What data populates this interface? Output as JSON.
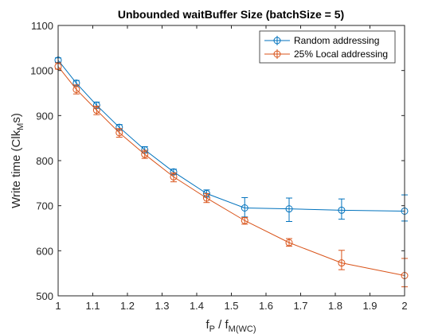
{
  "chart_data": {
    "type": "line",
    "title": "Unbounded waitBuffer Size (batchSize = 5)",
    "xlabel": {
      "base": "f",
      "sub1": "P",
      "mid": " / f",
      "sub2": "M(WC)"
    },
    "ylabel": {
      "pre": "Write time (Clk",
      "sub": "M",
      "post": "s)"
    },
    "xlim": [
      1,
      2
    ],
    "ylim": [
      500,
      1100
    ],
    "xticks": [
      "1",
      "1.1",
      "1.2",
      "1.3",
      "1.4",
      "1.5",
      "1.6",
      "1.7",
      "1.8",
      "1.9",
      "2"
    ],
    "yticks": [
      "500",
      "600",
      "700",
      "800",
      "900",
      "1000",
      "1100"
    ],
    "legend_position": "top-right",
    "grid": false,
    "x": [
      1.0,
      1.0526,
      1.1111,
      1.1765,
      1.25,
      1.3333,
      1.4286,
      1.5385,
      1.6667,
      1.8182,
      2.0
    ],
    "series": [
      {
        "name": "Random addressing",
        "color": "#0072BD",
        "marker": "circle",
        "values": [
          1023,
          972,
          923,
          874,
          824,
          775,
          727,
          695,
          693,
          690,
          688
        ],
        "err_low": [
          5,
          6,
          7,
          6,
          7,
          6,
          8,
          20,
          28,
          20,
          22
        ],
        "err_high": [
          5,
          6,
          7,
          6,
          7,
          6,
          8,
          23,
          24,
          25,
          36
        ]
      },
      {
        "name": "25% Local addressing",
        "color": "#D95319",
        "marker": "circle",
        "values": [
          1009,
          958,
          912,
          862,
          814,
          764,
          717,
          667,
          618,
          573,
          545
        ],
        "err_low": [
          6,
          10,
          10,
          10,
          9,
          11,
          10,
          8,
          8,
          15,
          25
        ],
        "err_high": [
          8,
          10,
          9,
          9,
          9,
          9,
          10,
          7,
          9,
          28,
          38
        ]
      }
    ]
  }
}
